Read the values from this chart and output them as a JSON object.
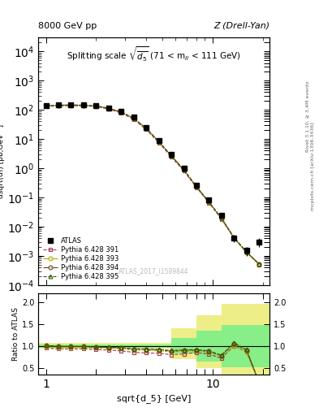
{
  "title_left": "8000 GeV pp",
  "title_right": "Z (Drell-Yan)",
  "panel_title": "Splitting scale $\\sqrt{\\overline{d_5}}$ (71 < m$_{ll}$ < 111 GeV)",
  "xlabel": "sqrt{d_5} [GeV]",
  "ylabel": "d$\\sigma$/dsqrt($\\overline{d_5}$) [pb,GeV$^{-1}$]",
  "ylabel_ratio": "Ratio to ATLAS",
  "watermark": "ATLAS_2017_I1589844",
  "right_label1": "Rivet 3.1.10, ≥ 3.4M events",
  "right_label2": "mcplots.cern.ch [arXiv:1306.3436]",
  "atlas_x": [
    1.0,
    1.19,
    1.41,
    1.68,
    2.0,
    2.38,
    2.83,
    3.36,
    4.0,
    4.76,
    5.66,
    6.73,
    8.0,
    9.51,
    11.31,
    13.45,
    16.0,
    19.03
  ],
  "atlas_y": [
    137.0,
    145.0,
    148.0,
    145.0,
    140.0,
    116.0,
    88.0,
    55.0,
    25.0,
    9.0,
    3.0,
    0.98,
    0.26,
    0.08,
    0.025,
    0.004,
    0.0015,
    0.003
  ],
  "atlas_yerr": [
    10.0,
    10.0,
    10.0,
    10.0,
    10.0,
    8.0,
    6.0,
    4.0,
    2.0,
    0.7,
    0.25,
    0.08,
    0.02,
    0.007,
    0.003,
    0.001,
    0.0005,
    0.001
  ],
  "py391_y": [
    130.0,
    135.0,
    138.0,
    135.0,
    128.0,
    105.0,
    78.0,
    47.0,
    21.0,
    7.5,
    2.4,
    0.8,
    0.22,
    0.065,
    0.018,
    0.004,
    0.0013,
    0.0005
  ],
  "py393_y": [
    135.0,
    140.0,
    143.0,
    140.0,
    133.0,
    110.0,
    82.0,
    50.0,
    22.5,
    8.0,
    2.6,
    0.86,
    0.23,
    0.068,
    0.019,
    0.004,
    0.0013,
    0.0005
  ],
  "py394_y": [
    138.0,
    143.0,
    146.0,
    143.0,
    136.0,
    112.0,
    84.0,
    51.0,
    23.0,
    8.2,
    2.65,
    0.88,
    0.235,
    0.07,
    0.0195,
    0.0042,
    0.00135,
    0.00052
  ],
  "py395_y": [
    138.5,
    143.5,
    146.5,
    143.5,
    136.5,
    112.5,
    84.5,
    51.5,
    23.2,
    8.3,
    2.68,
    0.89,
    0.238,
    0.071,
    0.0197,
    0.0043,
    0.00137,
    0.00053
  ],
  "ratio_band_x_edges": [
    0.9,
    5.66,
    8.0,
    11.31,
    16.0,
    22.0
  ],
  "ratio_band_yellow_lo": [
    0.93,
    0.7,
    0.5,
    0.35,
    0.35
  ],
  "ratio_band_yellow_hi": [
    1.07,
    1.4,
    1.7,
    1.95,
    1.95
  ],
  "ratio_band_green_lo": [
    0.96,
    0.82,
    0.65,
    0.52,
    0.52
  ],
  "ratio_band_green_hi": [
    1.04,
    1.18,
    1.35,
    1.48,
    1.48
  ],
  "color_atlas": "#000000",
  "color_py391": "#aa3355",
  "color_py393": "#aaaa00",
  "color_py394": "#664422",
  "color_py395": "#335500",
  "color_yellow": "#eeee88",
  "color_green": "#88ee88",
  "xlim": [
    0.9,
    22.0
  ],
  "ylim_main": [
    0.0001,
    30000.0
  ],
  "ylim_ratio": [
    0.35,
    2.2
  ],
  "ratio_yticks": [
    0.5,
    1.0,
    1.5,
    2.0
  ]
}
